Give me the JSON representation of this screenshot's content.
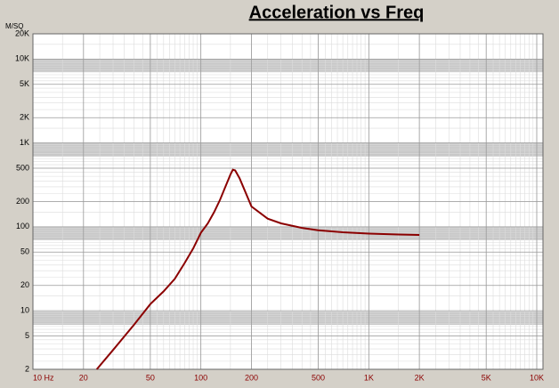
{
  "chart_data": {
    "type": "line",
    "title": "Acceleration vs Freq",
    "y_label": "M/SQ",
    "log_x": true,
    "log_y": true,
    "grid": true,
    "xlim": [
      10,
      10000
    ],
    "ylim": [
      2,
      20000
    ],
    "xticks": [
      {
        "value": 10,
        "label": "10 Hz"
      },
      20,
      50,
      100,
      200,
      500,
      {
        "value": 1000,
        "label": "1K"
      },
      {
        "value": 2000,
        "label": "2K"
      },
      {
        "value": 5000,
        "label": "5K"
      },
      {
        "value": 10000,
        "label": "10K"
      }
    ],
    "yticks": [
      {
        "value": 20000,
        "label": "20K"
      },
      {
        "value": 10000,
        "label": "10K"
      },
      {
        "value": 5000,
        "label": "5K"
      },
      {
        "value": 2000,
        "label": "2K"
      },
      {
        "value": 1000,
        "label": "1K"
      },
      500,
      200,
      100,
      50,
      20,
      10,
      5,
      2
    ],
    "x": [
      24,
      30,
      40,
      50,
      60,
      70,
      80,
      90,
      100,
      110,
      120,
      130,
      140,
      150,
      155,
      160,
      170,
      180,
      200,
      250,
      300,
      400,
      500,
      700,
      1000,
      1500,
      2000
    ],
    "series": [
      {
        "name": "Acceleration",
        "color": "#8b0000",
        "values": [
          2,
          3.4,
          6.8,
          12,
          17,
          24,
          37,
          55,
          85,
          110,
          150,
          210,
          300,
          420,
          480,
          470,
          380,
          290,
          175,
          125,
          110,
          97,
          91,
          86,
          83,
          81,
          80
        ]
      }
    ]
  }
}
